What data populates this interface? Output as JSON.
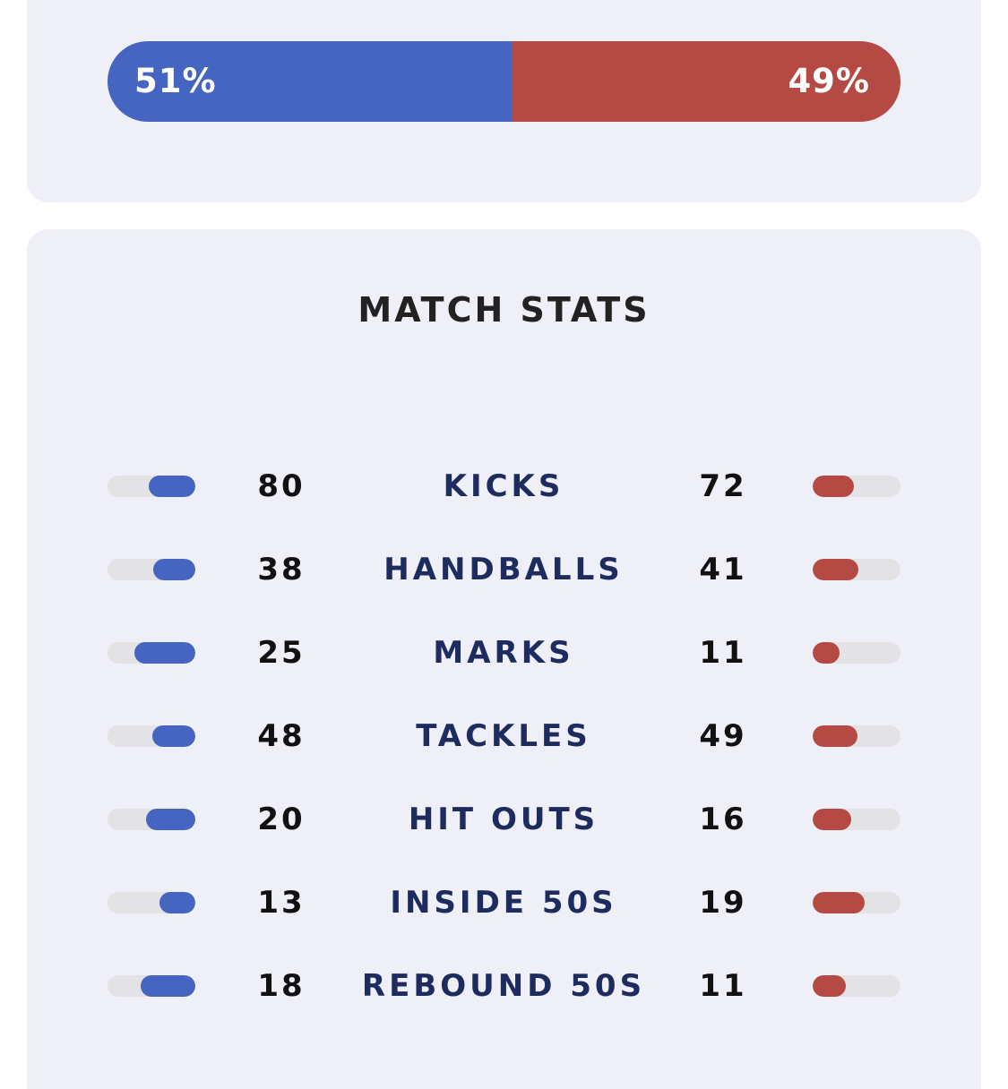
{
  "possession": {
    "home_label": "51%",
    "away_label": "49%",
    "home_fraction": 0.51,
    "away_fraction": 0.49,
    "home_color": "#4565c0",
    "away_color": "#b54a45"
  },
  "match_stats": {
    "title": "MATCH STATS",
    "rows": [
      {
        "label": "KICKS",
        "home": "80",
        "away": "72",
        "home_fill": 0.53,
        "away_fill": 0.47
      },
      {
        "label": "HANDBALLS",
        "home": "38",
        "away": "41",
        "home_fill": 0.48,
        "away_fill": 0.52
      },
      {
        "label": "MARKS",
        "home": "25",
        "away": "11",
        "home_fill": 0.69,
        "away_fill": 0.31
      },
      {
        "label": "TACKLES",
        "home": "48",
        "away": "49",
        "home_fill": 0.49,
        "away_fill": 0.51
      },
      {
        "label": "HIT OUTS",
        "home": "20",
        "away": "16",
        "home_fill": 0.56,
        "away_fill": 0.44
      },
      {
        "label": "INSIDE 50S",
        "home": "13",
        "away": "19",
        "home_fill": 0.41,
        "away_fill": 0.59
      },
      {
        "label": "REBOUND 50S",
        "home": "18",
        "away": "11",
        "home_fill": 0.62,
        "away_fill": 0.38
      }
    ]
  }
}
